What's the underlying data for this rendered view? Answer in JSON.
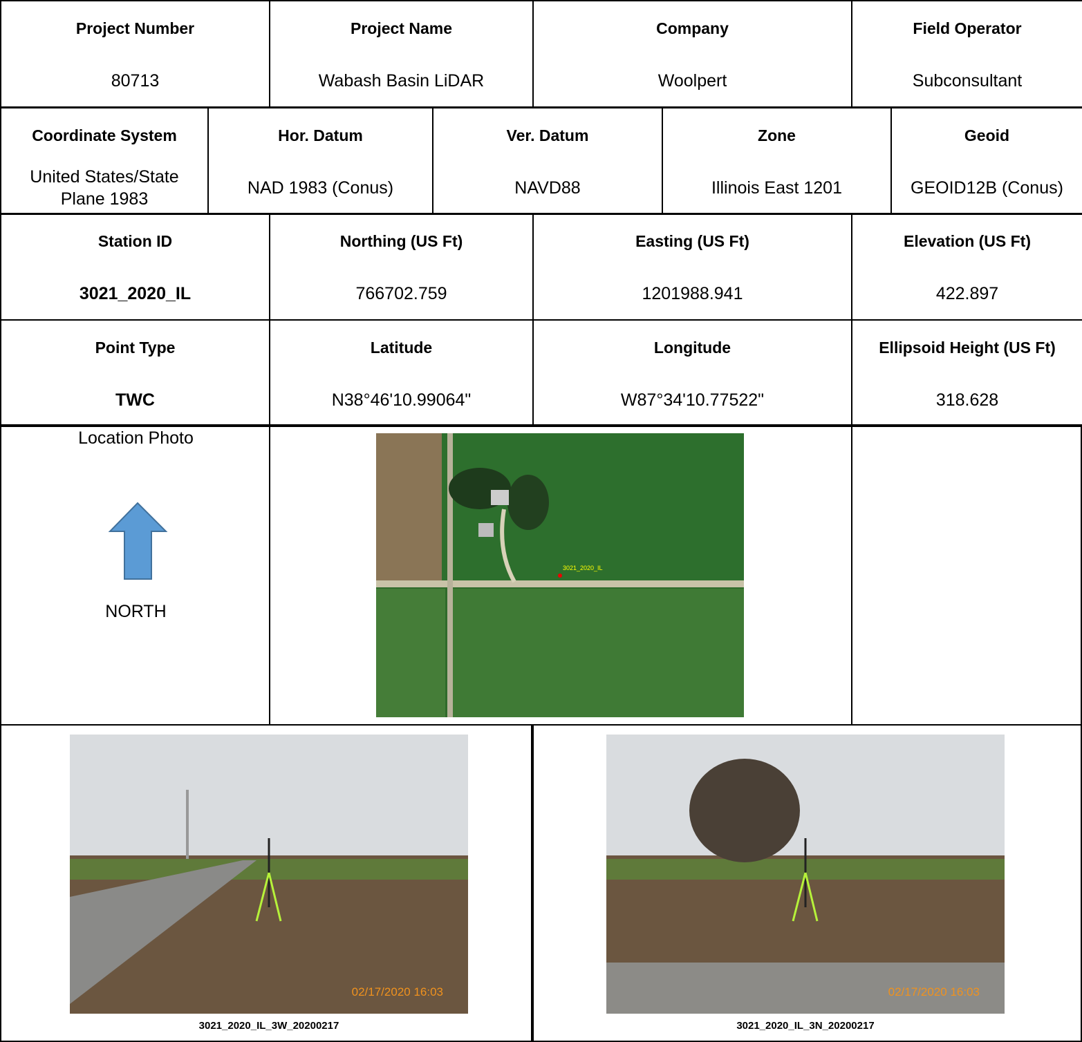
{
  "rows": [
    {
      "cells": [
        {
          "label": "Project Number",
          "value": "80713"
        },
        {
          "label": "Project Name",
          "value": "Wabash Basin LiDAR"
        },
        {
          "label": "Company",
          "value": "Woolpert"
        },
        {
          "label": "Field Operator",
          "value": "Subconsultant"
        }
      ]
    },
    {
      "cells": [
        {
          "label": "Coordinate System",
          "value": "United States/State Plane 1983"
        },
        {
          "label": "Hor. Datum",
          "value": "NAD 1983 (Conus)"
        },
        {
          "label": "Ver. Datum",
          "value": "NAVD88"
        },
        {
          "label": "Zone",
          "value": "Illinois East 1201"
        },
        {
          "label": "Geoid",
          "value": "GEOID12B (Conus)"
        }
      ]
    },
    {
      "cells": [
        {
          "label": "Station ID",
          "value": "3021_2020_IL"
        },
        {
          "label": "Northing (US Ft)",
          "value": "766702.759"
        },
        {
          "label": "Easting (US Ft)",
          "value": "1201988.941"
        },
        {
          "label": "Elevation (US Ft)",
          "value": "422.897"
        }
      ]
    },
    {
      "cells": [
        {
          "label": "Point Type",
          "value": "TWC"
        },
        {
          "label": "Latitude",
          "value": "N38°46'10.99064\""
        },
        {
          "label": "Longitude",
          "value": "W87°34'10.77522\""
        },
        {
          "label": "Ellipsoid Height (US Ft)",
          "value": "318.628"
        }
      ]
    }
  ],
  "location": {
    "label": "Location Photo",
    "north": "NORTH",
    "map_label": "3021_2020_IL"
  },
  "photos": [
    {
      "caption": "3021_2020_IL_3W_20200217",
      "timestamp": "02/17/2020 16:03"
    },
    {
      "caption": "3021_2020_IL_3N_20200217",
      "timestamp": "02/17/2020 16:03"
    }
  ]
}
